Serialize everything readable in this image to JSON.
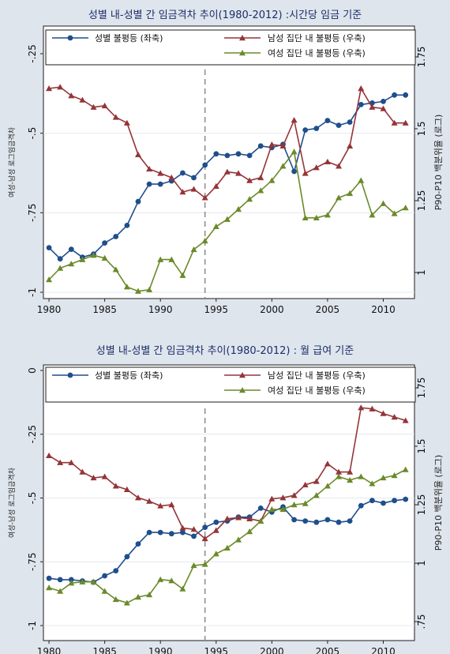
{
  "chart_data": [
    {
      "type": "line",
      "title": "성별 내-성별 간 임금격차 추이(1980-2012) :시간당 임금 기준",
      "ylabel_left": "여성-남성 로그임금격차",
      "ylabel_right": "P90-P10 백분위율 (로그)",
      "x_ticks": [
        "1980",
        "1985",
        "1990",
        "1995",
        "2000",
        "2005",
        "2010"
      ],
      "y_left_ticks": [
        "-1",
        "-.75",
        "-.5",
        "-.25"
      ],
      "y_left_range": [
        -1,
        -0.25
      ],
      "y_right_ticks": [
        "1",
        "1.25",
        "1.5",
        "1.75"
      ],
      "y_right_range": [
        0.96,
        1.79
      ],
      "xlim": [
        1979.5,
        2012.8
      ],
      "vline_x": 1994,
      "legend": [
        "성별 불평등 (좌축)",
        "남성 집단 내 불평등 (우축)",
        "여성 집단 내 불평등 (우축)"
      ],
      "x": [
        1980,
        1981,
        1982,
        1983,
        1984,
        1985,
        1986,
        1987,
        1988,
        1989,
        1990,
        1991,
        1992,
        1993,
        1994,
        1995,
        1996,
        1997,
        1998,
        1999,
        2000,
        2001,
        2002,
        2003,
        2004,
        2005,
        2006,
        2007,
        2008,
        2009,
        2010,
        2011,
        2012
      ],
      "series": [
        {
          "name": "성별 불평등 (좌축)",
          "axis": "left",
          "color": "#1f4e8c",
          "marker": "circle",
          "values": [
            -0.86,
            -0.895,
            -0.865,
            -0.89,
            -0.88,
            -0.845,
            -0.825,
            -0.79,
            -0.715,
            -0.66,
            -0.66,
            -0.65,
            -0.625,
            -0.64,
            -0.6,
            -0.565,
            -0.57,
            -0.565,
            -0.57,
            -0.54,
            -0.545,
            -0.535,
            -0.62,
            -0.49,
            -0.485,
            -0.46,
            -0.475,
            -0.465,
            -0.41,
            -0.405,
            -0.4,
            -0.38,
            -0.38
          ]
        },
        {
          "name": "남성 집단 내 불평등 (우축)",
          "axis": "right",
          "color": "#943538",
          "marker": "triangle",
          "values": [
            1.64,
            1.645,
            1.615,
            1.6,
            1.575,
            1.58,
            1.54,
            1.52,
            1.41,
            1.36,
            1.345,
            1.33,
            1.28,
            1.29,
            1.26,
            1.3,
            1.35,
            1.345,
            1.32,
            1.33,
            1.445,
            1.44,
            1.53,
            1.345,
            1.365,
            1.385,
            1.37,
            1.44,
            1.64,
            1.575,
            1.57,
            1.52,
            1.52
          ]
        },
        {
          "name": "여성 집단 내 불평등 (우축)",
          "axis": "right",
          "color": "#6b8a2a",
          "marker": "triangle",
          "values": [
            0.975,
            1.015,
            1.03,
            1.045,
            1.06,
            1.05,
            1.01,
            0.95,
            0.935,
            0.94,
            1.045,
            1.045,
            0.99,
            1.08,
            1.11,
            1.16,
            1.185,
            1.22,
            1.255,
            1.285,
            1.32,
            1.37,
            1.42,
            1.19,
            1.19,
            1.2,
            1.26,
            1.275,
            1.32,
            1.2,
            1.24,
            1.205,
            1.225
          ]
        }
      ]
    },
    {
      "type": "line",
      "title": "성별 내-성별 간 임금격차 추이(1980-2012) : 월 급여 기준",
      "ylabel_left": "여성-남성 로그임금격차",
      "ylabel_right": "P90-P10 백분위율 (로그)",
      "x_ticks": [
        "1980",
        "1985",
        "1990",
        "1995",
        "2000",
        "2005",
        "2010"
      ],
      "y_left_ticks": [
        "-1",
        "-.75",
        "-.5",
        "-.25",
        "0"
      ],
      "y_left_range": [
        -1,
        0
      ],
      "y_right_ticks": [
        ".75",
        "1",
        "1.25",
        "1.5",
        "1.75"
      ],
      "y_right_range": [
        0.742,
        1.81
      ],
      "xlim": [
        1979.5,
        2012.8
      ],
      "vline_x": 1994,
      "legend": [
        "성별 불평등 (좌축)",
        "남성 집단 내 불평등 (우축)",
        "여성 집단 내 불평등 (우축)"
      ],
      "x": [
        1980,
        1981,
        1982,
        1983,
        1984,
        1985,
        1986,
        1987,
        1988,
        1989,
        1990,
        1991,
        1992,
        1993,
        1994,
        1995,
        1996,
        1997,
        1998,
        1999,
        2000,
        2001,
        2002,
        2003,
        2004,
        2005,
        2006,
        2007,
        2008,
        2009,
        2010,
        2011,
        2012
      ],
      "series": [
        {
          "name": "성별 불평등 (좌축)",
          "axis": "left",
          "color": "#1f4e8c",
          "marker": "circle",
          "values": [
            -0.815,
            -0.82,
            -0.82,
            -0.825,
            -0.83,
            -0.805,
            -0.785,
            -0.73,
            -0.68,
            -0.635,
            -0.635,
            -0.64,
            -0.635,
            -0.65,
            -0.615,
            -0.595,
            -0.59,
            -0.575,
            -0.575,
            -0.54,
            -0.555,
            -0.535,
            -0.585,
            -0.59,
            -0.595,
            -0.585,
            -0.595,
            -0.59,
            -0.53,
            -0.51,
            -0.52,
            -0.51,
            -0.505
          ]
        },
        {
          "name": "남성 집단 내 불평등 (우축)",
          "axis": "right",
          "color": "#943538",
          "marker": "triangle",
          "values": [
            1.46,
            1.43,
            1.43,
            1.39,
            1.365,
            1.37,
            1.33,
            1.315,
            1.28,
            1.265,
            1.245,
            1.25,
            1.15,
            1.145,
            1.105,
            1.14,
            1.19,
            1.195,
            1.19,
            1.18,
            1.275,
            1.28,
            1.29,
            1.335,
            1.35,
            1.425,
            1.39,
            1.39,
            1.665,
            1.66,
            1.64,
            1.625,
            1.61
          ]
        },
        {
          "name": "여성 집단 내 불평등 (우축)",
          "axis": "right",
          "color": "#6b8a2a",
          "marker": "triangle",
          "values": [
            0.895,
            0.88,
            0.915,
            0.92,
            0.92,
            0.88,
            0.845,
            0.83,
            0.855,
            0.865,
            0.93,
            0.925,
            0.89,
            0.99,
            0.995,
            1.04,
            1.065,
            1.1,
            1.135,
            1.18,
            1.23,
            1.23,
            1.25,
            1.255,
            1.29,
            1.33,
            1.37,
            1.355,
            1.37,
            1.34,
            1.365,
            1.375,
            1.4
          ]
        }
      ]
    }
  ]
}
